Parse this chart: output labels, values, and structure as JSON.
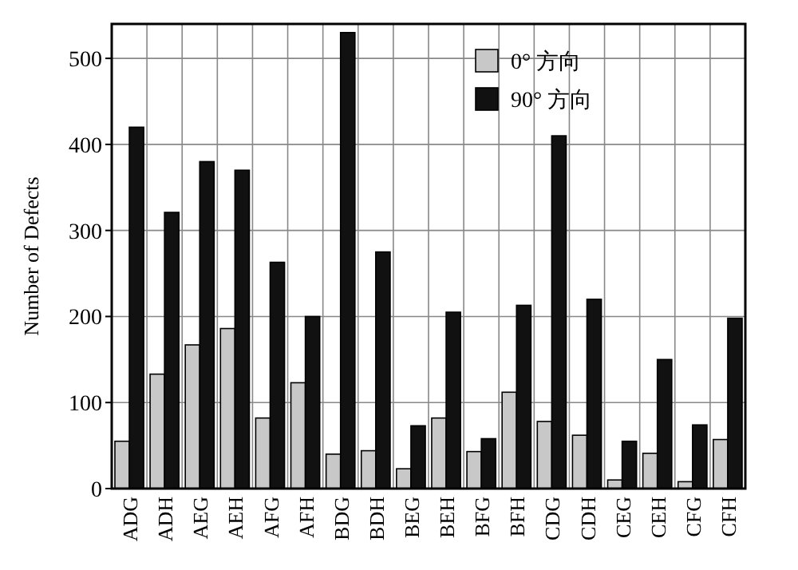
{
  "chart_data": {
    "type": "bar",
    "ylabel": "Number of Defects",
    "categories": [
      "ADG",
      "ADH",
      "AEG",
      "AEH",
      "AFG",
      "AFH",
      "BDG",
      "BDH",
      "BEG",
      "BEH",
      "BFG",
      "BFH",
      "CDG",
      "CDH",
      "CEG",
      "CEH",
      "CFG",
      "CFH"
    ],
    "series": [
      {
        "name": "0° 方向",
        "color": "#c8c8c8",
        "values": [
          55,
          133,
          167,
          186,
          82,
          123,
          40,
          44,
          23,
          82,
          43,
          112,
          78,
          62,
          10,
          41,
          8,
          57
        ]
      },
      {
        "name": "90° 方向",
        "color": "#111111",
        "values": [
          420,
          321,
          380,
          370,
          263,
          200,
          530,
          275,
          73,
          205,
          58,
          213,
          410,
          220,
          55,
          150,
          74,
          198
        ]
      }
    ],
    "ylim": [
      0,
      540
    ],
    "yticks": [
      0,
      100,
      200,
      300,
      400,
      500
    ],
    "grid": true,
    "legend": "top right"
  }
}
